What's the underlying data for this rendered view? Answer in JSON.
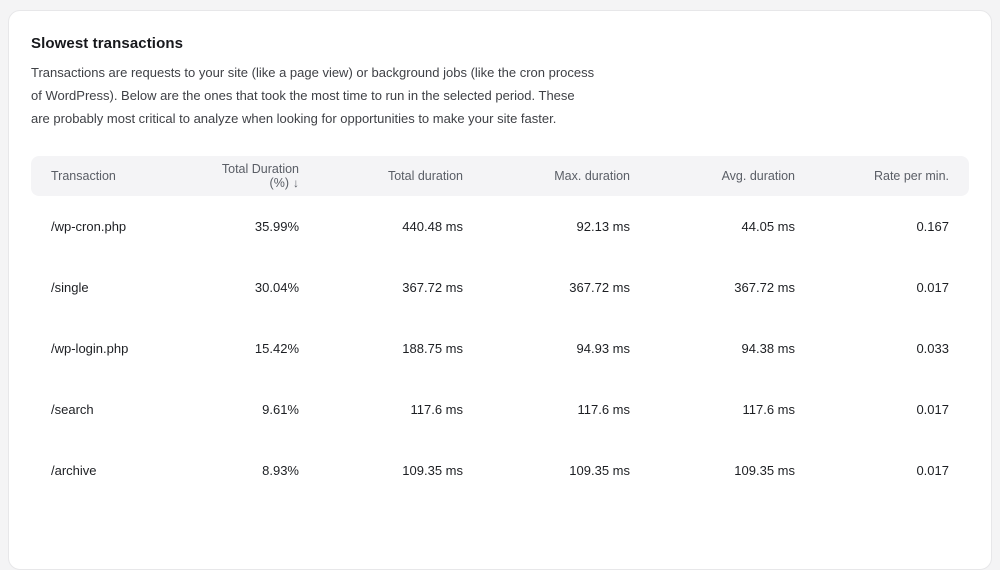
{
  "panel": {
    "title": "Slowest transactions",
    "description": "Transactions are requests to your site (like a page view) or background jobs (like the cron process of WordPress). Below are the ones that took the most time to run in the selected period. These are probably most critical to analyze when looking for opportunities to make your site faster."
  },
  "table": {
    "columns": {
      "transaction": "Transaction",
      "total_duration_pct": "Total Duration (%)",
      "total_duration": "Total duration",
      "max_duration": "Max. duration",
      "avg_duration": "Avg. duration",
      "rate_per_min": "Rate per min."
    },
    "sort": {
      "column": "total_duration_pct",
      "direction": "desc",
      "icon": "↓"
    },
    "rows": [
      {
        "transaction": "/wp-cron.php",
        "total_duration_pct": "35.99%",
        "total_duration": "440.48 ms",
        "max_duration": "92.13 ms",
        "avg_duration": "44.05 ms",
        "rate_per_min": "0.167"
      },
      {
        "transaction": "/single",
        "total_duration_pct": "30.04%",
        "total_duration": "367.72 ms",
        "max_duration": "367.72 ms",
        "avg_duration": "367.72 ms",
        "rate_per_min": "0.017"
      },
      {
        "transaction": "/wp-login.php",
        "total_duration_pct": "15.42%",
        "total_duration": "188.75 ms",
        "max_duration": "94.93 ms",
        "avg_duration": "94.38 ms",
        "rate_per_min": "0.033"
      },
      {
        "transaction": "/search",
        "total_duration_pct": "9.61%",
        "total_duration": "117.6 ms",
        "max_duration": "117.6 ms",
        "avg_duration": "117.6 ms",
        "rate_per_min": "0.017"
      },
      {
        "transaction": "/archive",
        "total_duration_pct": "8.93%",
        "total_duration": "109.35 ms",
        "max_duration": "109.35 ms",
        "avg_duration": "109.35 ms",
        "rate_per_min": "0.017"
      }
    ]
  },
  "colors": {
    "page_background": "#f4f4f5",
    "card_background": "#ffffff",
    "card_border": "#e7e7e9",
    "header_band_background": "#f4f4f6",
    "header_text": "#5a5e66",
    "body_text": "#3f4146",
    "cell_text": "#1d1f23"
  }
}
